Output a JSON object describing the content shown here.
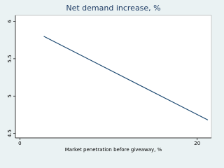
{
  "chart_data": {
    "type": "line",
    "title": "Net demand increase, %",
    "x_label": "Market penetration before giveaway, %",
    "x": [
      2.7,
      21.2
    ],
    "series": [
      {
        "color": "#1a476f",
        "values": [
          5.8,
          4.68
        ]
      }
    ],
    "xlim": [
      -0.5,
      21.6
    ],
    "xticks": [
      0,
      20
    ],
    "ylim": [
      4.44,
      6.08
    ],
    "yticks": [
      4.5,
      5,
      5.5,
      6
    ]
  }
}
